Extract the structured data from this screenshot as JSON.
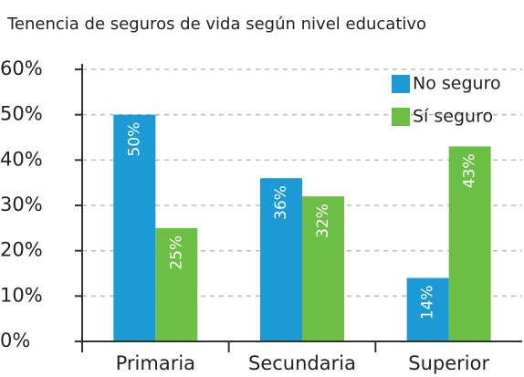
{
  "chart_data": {
    "type": "bar",
    "title": "Tenencia de seguros de vida según nivel educativo",
    "categories": [
      "Primaria",
      "Secundaria",
      "Superior"
    ],
    "series": [
      {
        "name": "No seguro",
        "color": "#1b9ad6",
        "values": [
          50,
          36,
          14
        ],
        "value_labels": [
          "50%",
          "36%",
          "14%"
        ]
      },
      {
        "name": "Sí seguro",
        "color": "#6cbf45",
        "values": [
          25,
          32,
          43
        ],
        "value_labels": [
          "25%",
          "32%",
          "43%"
        ]
      }
    ],
    "ylim": [
      0,
      60
    ],
    "yticks": [
      {
        "value": 0,
        "label": "0%"
      },
      {
        "value": 10,
        "label": "10%"
      },
      {
        "value": 20,
        "label": "20%"
      },
      {
        "value": 30,
        "label": "30%"
      },
      {
        "value": 40,
        "label": "40%"
      },
      {
        "value": 50,
        "label": "50%"
      },
      {
        "value": 60,
        "label": "60%"
      }
    ],
    "grid": true,
    "legend": "upper right"
  }
}
